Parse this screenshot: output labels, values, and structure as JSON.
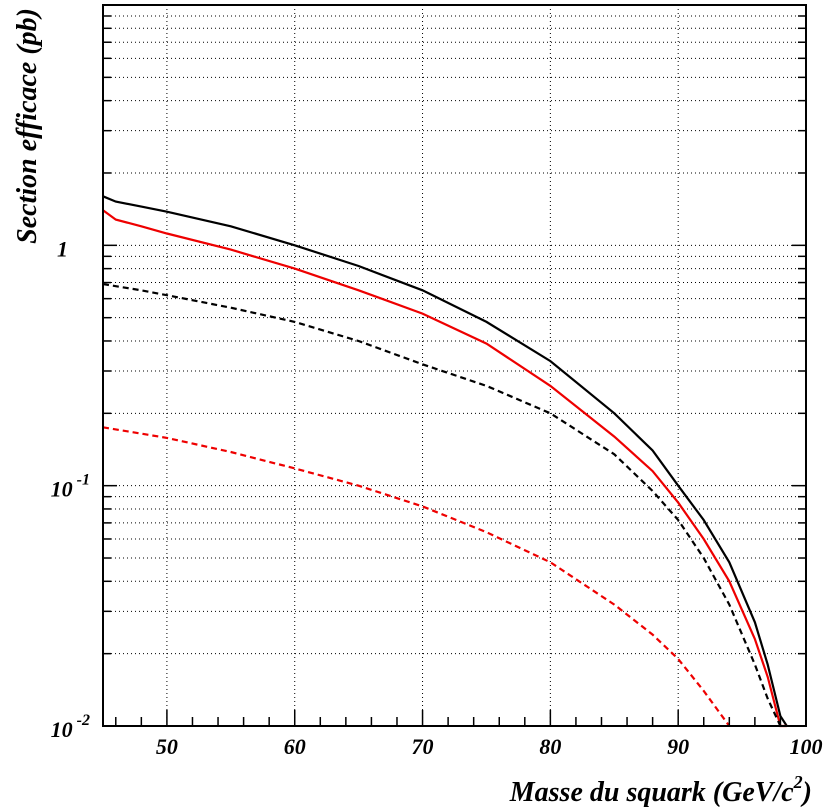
{
  "chart_data": {
    "type": "line",
    "xlabel": "Masse du squark (GeV/c",
    "xlabel_sup": "2",
    "xlabel_end": ")",
    "ylabel": "Section efficace (pb)",
    "xlim": [
      45,
      100
    ],
    "ylim": [
      0.01,
      10
    ],
    "yscale": "log",
    "grid": true,
    "x_ticks": [
      {
        "value": 50,
        "label": "50"
      },
      {
        "value": 60,
        "label": "60"
      },
      {
        "value": 70,
        "label": "70"
      },
      {
        "value": 80,
        "label": "80"
      },
      {
        "value": 90,
        "label": "90"
      },
      {
        "value": 100,
        "label": "100"
      }
    ],
    "y_ticks": [
      {
        "value": 1,
        "base": "1",
        "exp": ""
      },
      {
        "value": 0.1,
        "base": "10",
        "exp": "-1"
      },
      {
        "value": 0.01,
        "base": "10",
        "exp": "-2"
      }
    ],
    "series": [
      {
        "color": "#000000",
        "style": "solid",
        "x": [
          45,
          46,
          48,
          50,
          55,
          60,
          65,
          70,
          75,
          80,
          85,
          88,
          90,
          92,
          94,
          96,
          97,
          98,
          98.5
        ],
        "y": [
          1.6,
          1.52,
          1.45,
          1.38,
          1.2,
          1.0,
          0.82,
          0.65,
          0.48,
          0.33,
          0.2,
          0.14,
          0.1,
          0.072,
          0.048,
          0.027,
          0.018,
          0.011,
          0.0095
        ]
      },
      {
        "color": "#ee0000",
        "style": "solid",
        "x": [
          45,
          46,
          48,
          50,
          55,
          60,
          65,
          70,
          75,
          80,
          85,
          88,
          90,
          92,
          94,
          96,
          97,
          98,
          98.5
        ],
        "y": [
          1.4,
          1.28,
          1.2,
          1.12,
          0.96,
          0.8,
          0.65,
          0.52,
          0.39,
          0.26,
          0.16,
          0.115,
          0.085,
          0.06,
          0.04,
          0.023,
          0.016,
          0.01,
          0.0085
        ]
      },
      {
        "color": "#000000",
        "style": "dashed",
        "x": [
          45,
          48,
          50,
          55,
          60,
          65,
          70,
          75,
          80,
          85,
          88,
          90,
          92,
          94,
          96,
          97,
          98
        ],
        "y": [
          0.69,
          0.65,
          0.62,
          0.55,
          0.48,
          0.4,
          0.32,
          0.26,
          0.2,
          0.135,
          0.095,
          0.072,
          0.05,
          0.032,
          0.018,
          0.013,
          0.0095
        ]
      },
      {
        "color": "#ee0000",
        "style": "dashed",
        "x": [
          45,
          50,
          55,
          60,
          65,
          70,
          75,
          80,
          85,
          88,
          90,
          92,
          94
        ],
        "y": [
          0.175,
          0.158,
          0.138,
          0.118,
          0.1,
          0.082,
          0.064,
          0.048,
          0.032,
          0.024,
          0.019,
          0.014,
          0.0093
        ]
      }
    ]
  }
}
